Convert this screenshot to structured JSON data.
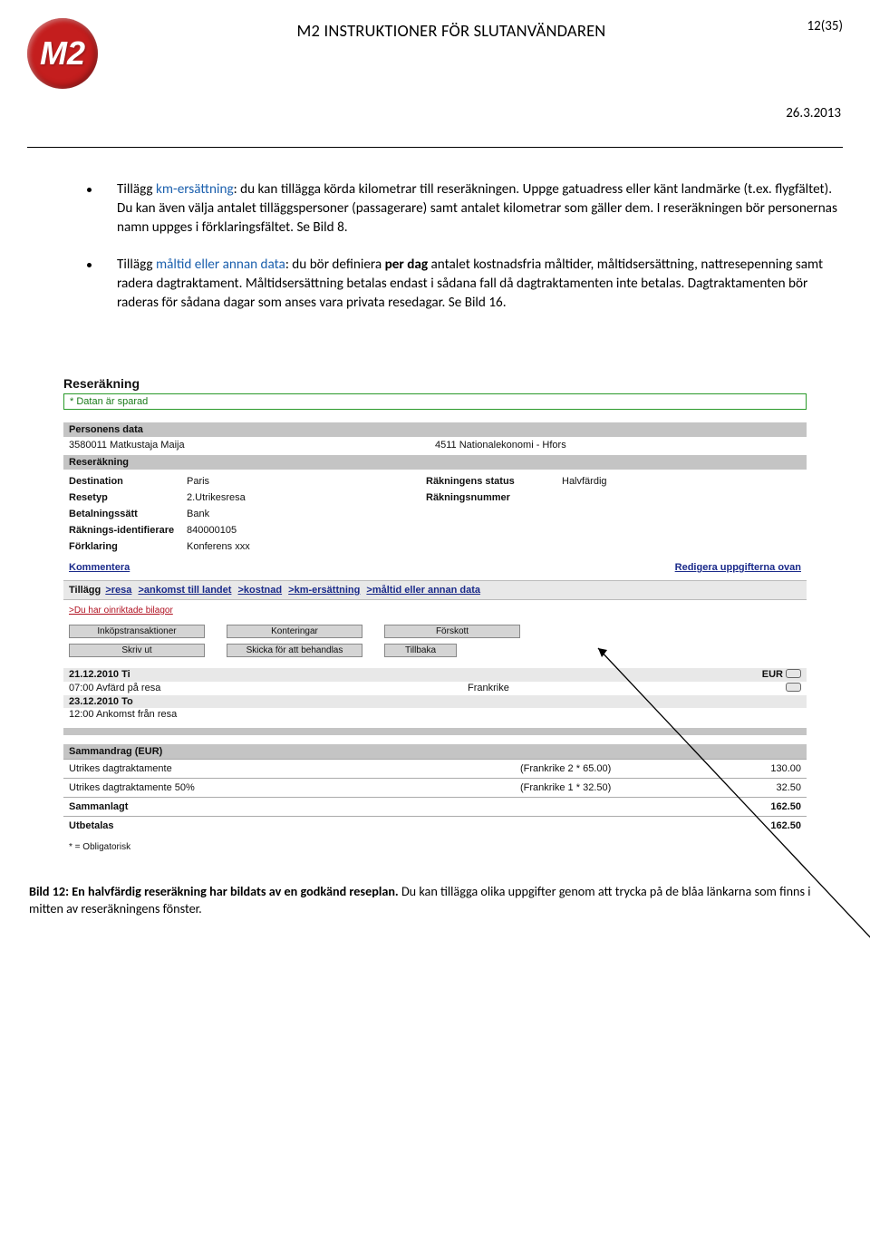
{
  "header": {
    "logo_text": "M2",
    "title": "M2 INSTRUKTIONER FÖR SLUTANVÄNDAREN",
    "page_num": "12(35)",
    "date": "26.3.2013"
  },
  "bullet1": {
    "pre": "Tillägg ",
    "link": "km-ersättning",
    "post": ": du kan tillägga körda kilometrar till reseräkningen. Uppge gatuadress eller känt landmärke (t.ex. flygfältet). Du kan även välja antalet tilläggspersoner (passagerare) samt antalet kilometrar som gäller dem. I reseräkningen bör personernas namn uppges i förklaringsfältet. Se Bild 8."
  },
  "bullet2": {
    "pre": "Tillägg ",
    "link": "måltid eller annan data",
    "mid1": ": du bör definiera ",
    "bold": "per dag",
    "post": " antalet kostnadsfria måltider, måltidsersättning, nattresepenning samt radera dagtraktament. Måltidsersättning betalas endast i sådana fall då dagtraktamenten inte betalas. Dagtraktamenten bör raderas för sådana dagar som anses vara privata resedagar. Se Bild 16."
  },
  "ss": {
    "title": "Reseräkning",
    "saved": "* Datan är sparad",
    "persons_hdr": "Personens data",
    "person_id": "3580011 Matkustaja Maija",
    "person_dept": "4511 Nationalekonomi - Hfors",
    "reser_hdr": "Reseräkning",
    "fields": {
      "dest_lbl": "Destination",
      "dest_val": "Paris",
      "status_lbl": "Räkningens status",
      "status_val": "Halvfärdig",
      "resetyp_lbl": "Resetyp",
      "resetyp_val": "2.Utrikesresa",
      "raknr_lbl": "Räkningsnummer",
      "raknr_val": "",
      "betal_lbl": "Betalningssätt",
      "betal_val": "Bank",
      "rakid_lbl": "Räknings-identifierare",
      "rakid_val": "840000105",
      "fork_lbl": "Förklaring",
      "fork_val": "Konferens xxx"
    },
    "kommentera": "Kommentera",
    "redigera": "Redigera uppgifterna ovan",
    "tillagg_label": "Tillägg",
    "tillagg_links": [
      ">resa",
      ">ankomst till landet",
      ">kostnad",
      ">km-ersättning",
      ">måltid eller annan data"
    ],
    "red_link": ">Du har oinriktade bilagor",
    "buttons_r1": [
      "Inköpstransaktioner",
      "Konteringar",
      "Förskott"
    ],
    "buttons_r2": [
      "Skriv ut",
      "Skicka för att behandlas",
      "Tillbaka"
    ],
    "events": [
      {
        "date": "21.12.2010 Ti",
        "text": "07:00 Avfärd på resa",
        "country": "Frankrike",
        "cur": "EUR",
        "icon": true
      },
      {
        "date": "23.12.2010 To",
        "text": "12:00 Ankomst från resa",
        "country": "",
        "cur": "",
        "icon": true
      }
    ],
    "summary_hdr": "Sammandrag (EUR)",
    "sum_rows": [
      {
        "l": "Utrikes dagtraktamente",
        "m": "(Frankrike 2 * 65.00)",
        "r": "130.00",
        "bold": false
      },
      {
        "l": "Utrikes dagtraktamente 50%",
        "m": "(Frankrike 1 * 32.50)",
        "r": "32.50",
        "bold": false
      },
      {
        "l": "Sammanlagt",
        "m": "",
        "r": "162.50",
        "bold": true
      },
      {
        "l": "Utbetalas",
        "m": "",
        "r": "162.50",
        "bold": true
      }
    ],
    "oblig": "* = Obligatorisk"
  },
  "caption": {
    "bold": "Bild 12: En halvfärdig reseräkning har bildats av en godkänd reseplan.",
    "rest": " Du kan tillägga olika uppgifter genom att trycka på de blåa länkarna som finns i mitten av reseräkningens fönster."
  }
}
